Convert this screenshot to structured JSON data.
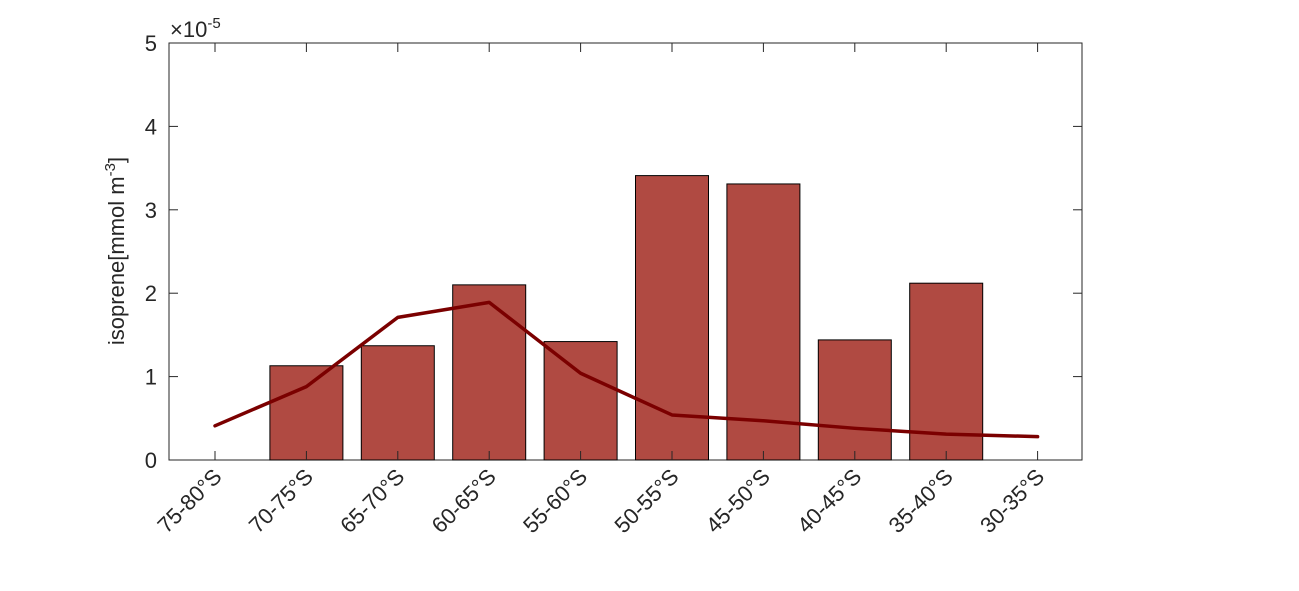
{
  "chart_data": {
    "type": "bar",
    "categories": [
      "75-80°S",
      "70-75°S",
      "65-70°S",
      "60-65°S",
      "55-60°S",
      "50-55°S",
      "45-50°S",
      "40-45°S",
      "35-40°S",
      "30-35°S"
    ],
    "scale_label": "×10",
    "scale_exponent": "-5",
    "ylabel": "isoprene[mmol m",
    "ylabel_sup": "-3",
    "ylabel_end": "]",
    "ylim": [
      0,
      5
    ],
    "yticks": [
      "0",
      "1",
      "2",
      "3",
      "4",
      "5"
    ],
    "ytick_values": [
      0,
      1,
      2,
      3,
      4,
      5
    ],
    "multiplier": 1e-05,
    "series": [
      {
        "type": "bar",
        "values": [
          0,
          1.13,
          1.37,
          2.1,
          1.42,
          3.41,
          3.31,
          1.44,
          2.12,
          0
        ]
      },
      {
        "type": "line",
        "values": [
          0.41,
          0.88,
          1.71,
          1.89,
          1.04,
          0.54,
          0.47,
          0.38,
          0.31,
          0.28
        ]
      }
    ],
    "colors": {
      "bar_fill": "#b04a42",
      "bar_edge": "#000000",
      "line": "#7b0000",
      "axis": "#262626"
    },
    "grid": false
  }
}
